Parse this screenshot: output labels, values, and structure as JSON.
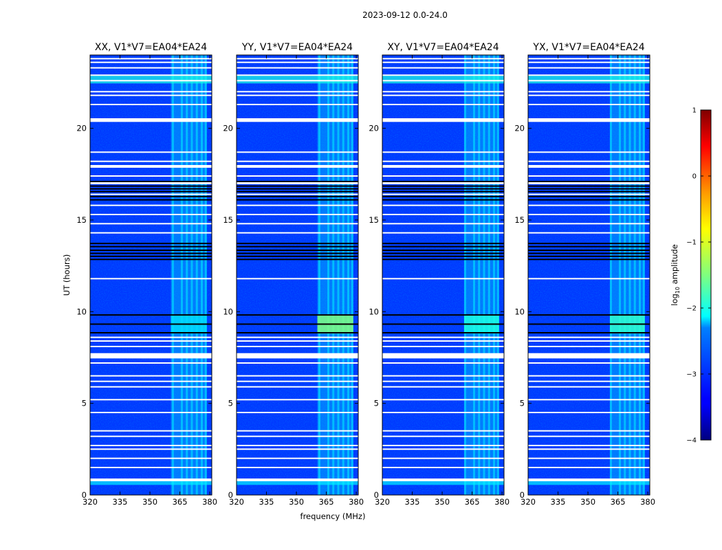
{
  "figure": {
    "suptitle": "2023-09-12 0.0-24.0"
  },
  "colorbar": {
    "label_prefix": "log",
    "label_sub": "10",
    "label_suffix": " amplitude",
    "range": [
      -4,
      1
    ],
    "ticks": [
      {
        "value": 1,
        "label": "1"
      },
      {
        "value": 0,
        "label": "0"
      },
      {
        "value": -1,
        "label": "−1"
      },
      {
        "value": -2,
        "label": "−2"
      },
      {
        "value": -3,
        "label": "−3"
      },
      {
        "value": -4,
        "label": "−4"
      }
    ],
    "colormap": "jet",
    "colors": {
      "low": "#00007f",
      "blue": "#0000ff",
      "cyan": "#00ffff",
      "yellow": "#ffff00",
      "red": "#ff0000",
      "high": "#7f0000"
    }
  },
  "chart_data": {
    "type": "heatmap",
    "xlabel": "frequency (MHz)",
    "ylabel": "UT (hours)",
    "xlim": [
      320,
      381
    ],
    "ylim": [
      0,
      24
    ],
    "x_ticks": [
      {
        "value": 320,
        "label": "320"
      },
      {
        "value": 335,
        "label": "335"
      },
      {
        "value": 350,
        "label": "350"
      },
      {
        "value": 365,
        "label": "365"
      },
      {
        "value": 380,
        "label": "380"
      }
    ],
    "y_ticks": [
      {
        "value": 0,
        "label": "0"
      },
      {
        "value": 5,
        "label": "5"
      },
      {
        "value": 10,
        "label": "10"
      },
      {
        "value": 15,
        "label": "15"
      },
      {
        "value": 20,
        "label": "20"
      }
    ],
    "background_log10_amplitude": -3.1,
    "rfi_band_mhz": [
      360.5,
      378.5
    ],
    "rfi_channel_lines_mhz": [
      361.5,
      366,
      368.5,
      371,
      373.5,
      376,
      378
    ],
    "rfi_log10_amplitude": -2.4,
    "flagged_time_rows_ut": [
      0.8,
      1.5,
      2.0,
      2.5,
      2.7,
      3.2,
      3.5,
      4.5,
      5.2,
      5.9,
      6.2,
      6.5,
      7.2,
      7.5,
      7.7,
      8.1,
      8.4,
      8.6,
      11.8,
      14.3,
      14.8,
      15.3,
      15.8,
      16.4,
      17.0,
      17.4,
      17.9,
      18.2,
      18.7,
      20.4,
      21.3,
      21.8,
      22.0,
      22.6,
      22.9,
      23.3,
      23.6,
      23.8
    ],
    "black_time_rows_ut": [
      8.85,
      9.32,
      9.82,
      12.85,
      13.02,
      13.18,
      13.35,
      13.55,
      13.72,
      16.1,
      16.28,
      16.55,
      16.7,
      16.85,
      17.1
    ],
    "bright_time_bands": [
      {
        "ut": [
          22.45,
          22.9
        ],
        "log10_amplitude": -2.0
      },
      {
        "ut": [
          0.55,
          0.75
        ],
        "log10_amplitude": -2.2
      }
    ],
    "panels": [
      {
        "title": "XX, V1*V7=EA04*EA24",
        "rfi_start_mhz": 360.5,
        "bright_burst": {
          "ut": [
            8.8,
            9.8
          ],
          "log10_amplitude": -2.3
        }
      },
      {
        "title": "YY, V1*V7=EA04*EA24",
        "rfi_start_mhz": 360.5,
        "bright_burst": {
          "ut": [
            8.8,
            9.8
          ],
          "log10_amplitude": -1.5
        }
      },
      {
        "title": "XY, V1*V7=EA04*EA24",
        "rfi_start_mhz": 361.0,
        "bright_burst": {
          "ut": [
            8.8,
            9.8
          ],
          "log10_amplitude": -2.0
        }
      },
      {
        "title": "YX, V1*V7=EA04*EA24",
        "rfi_start_mhz": 361.0,
        "bright_burst": {
          "ut": [
            8.8,
            9.8
          ],
          "log10_amplitude": -1.9
        }
      }
    ]
  }
}
